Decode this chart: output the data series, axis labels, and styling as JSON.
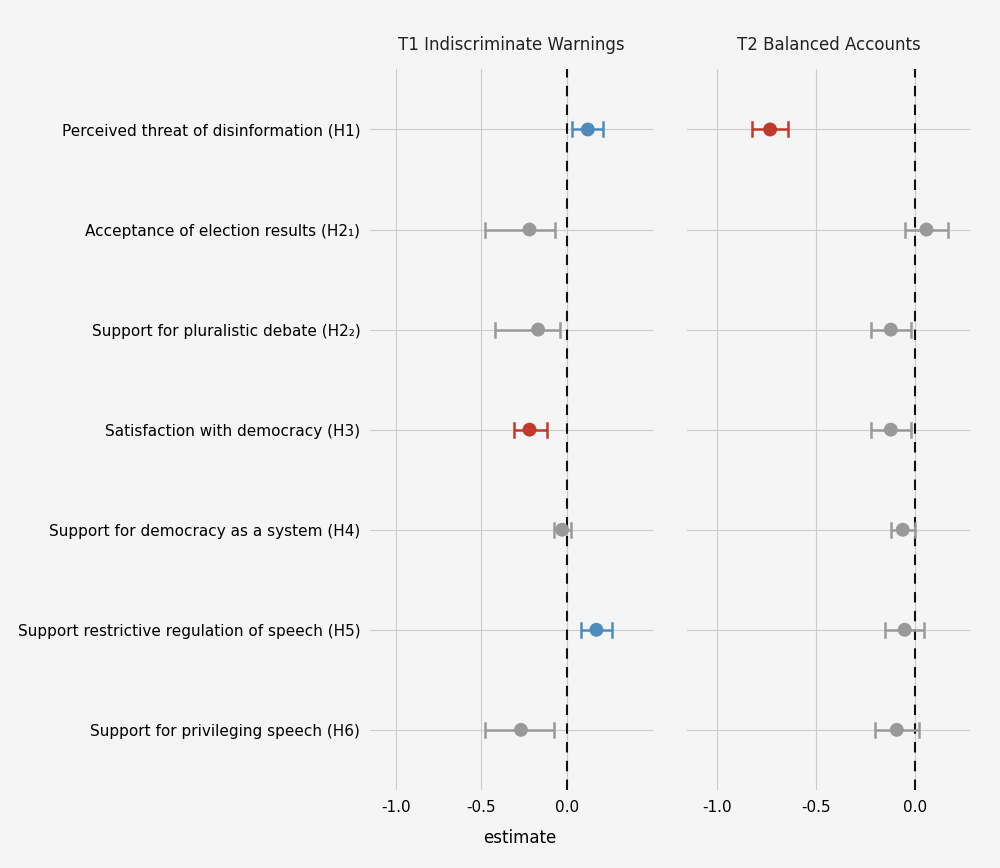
{
  "labels": [
    "Perceived threat of disinformation (H1)",
    "Acceptance of election results (H2₁)",
    "Support for pluralistic debate (H2₂)",
    "Satisfaction with democracy (H3)",
    "Support for democracy as a system (H4)",
    "Support restrictive regulation of speech (H5)",
    "Support for privileging speech (H6)"
  ],
  "t1": {
    "estimates": [
      0.12,
      -0.22,
      -0.17,
      -0.22,
      -0.03,
      0.17,
      -0.27
    ],
    "ci_low": [
      0.03,
      -0.48,
      -0.42,
      -0.31,
      -0.08,
      0.08,
      -0.48
    ],
    "ci_high": [
      0.21,
      -0.07,
      -0.04,
      -0.12,
      0.02,
      0.26,
      -0.08
    ],
    "colors": [
      "#4e8bbd",
      "#999999",
      "#999999",
      "#c0392b",
      "#999999",
      "#4e8bbd",
      "#999999"
    ]
  },
  "t2": {
    "estimates": [
      -0.73,
      0.06,
      -0.12,
      -0.12,
      -0.06,
      -0.05,
      -0.09
    ],
    "ci_low": [
      -0.82,
      -0.05,
      -0.22,
      -0.22,
      -0.12,
      -0.15,
      -0.2
    ],
    "ci_high": [
      -0.64,
      0.17,
      -0.02,
      -0.02,
      0.0,
      0.05,
      0.02
    ],
    "colors": [
      "#c0392b",
      "#999999",
      "#999999",
      "#999999",
      "#999999",
      "#999999",
      "#999999"
    ]
  },
  "t1_title": "T1 Indiscriminate Warnings",
  "t2_title": "T2 Balanced Accounts",
  "xlabel": "estimate",
  "t1_xlim": [
    -1.15,
    0.5
  ],
  "t2_xlim": [
    -1.15,
    0.28
  ],
  "t1_xticks": [
    -1.0,
    -0.5,
    0.0
  ],
  "t2_xticks": [
    -1.0,
    -0.5,
    0.0
  ],
  "bg_color": "#f5f5f5",
  "grid_color": "#cccccc",
  "dashed_line_color": "#111111",
  "dot_size": 100,
  "linewidth": 1.8,
  "title_fontsize": 12,
  "label_fontsize": 11,
  "tick_fontsize": 11
}
